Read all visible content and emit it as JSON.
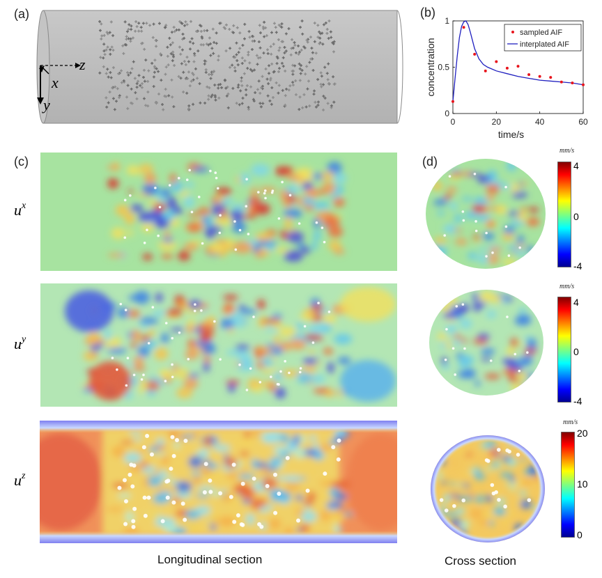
{
  "panels": {
    "a": "(a)",
    "b": "(b)",
    "c": "(c)",
    "d": "(d)"
  },
  "vessel_axes": {
    "z": "z",
    "x": "x",
    "y": "y"
  },
  "components": [
    {
      "base": "u",
      "sup": "x"
    },
    {
      "base": "u",
      "sup": "y"
    },
    {
      "base": "u",
      "sup": "z"
    }
  ],
  "colorbars": [
    {
      "unit": "mm/s",
      "ticks": [
        "4",
        "0",
        "-4"
      ]
    },
    {
      "unit": "mm/s",
      "ticks": [
        "4",
        "0",
        "-4"
      ]
    },
    {
      "unit": "mm/s",
      "ticks": [
        "20",
        "10",
        "0"
      ]
    }
  ],
  "captions": {
    "longitudinal": "Longitudinal section",
    "cross": "Cross section"
  },
  "colors": {
    "sampled": "#e8141c",
    "interpolated": "#1f1fbf",
    "field_bg_x": "#a7e3a0",
    "field_bg_y": "#b3e6b4",
    "field_bg_z": "#f0915a"
  },
  "chart_data": {
    "type": "line",
    "xlabel": "time/s",
    "ylabel": "concentration",
    "xlim": [
      0,
      60
    ],
    "ylim": [
      0,
      1
    ],
    "xticks": [
      0,
      20,
      40,
      60
    ],
    "yticks": [
      0,
      0.5,
      1
    ],
    "legend_position": "top-right",
    "series": [
      {
        "name": "sampled AIF",
        "style": "markers",
        "x": [
          0,
          5,
          10,
          15,
          20,
          25,
          30,
          35,
          40,
          45,
          50,
          55,
          60
        ],
        "y": [
          0.13,
          0.93,
          0.64,
          0.46,
          0.56,
          0.49,
          0.51,
          0.42,
          0.4,
          0.39,
          0.34,
          0.33,
          0.31
        ]
      },
      {
        "name": "interplated AIF",
        "style": "line",
        "x": [
          0,
          1,
          2,
          3,
          4,
          5,
          6,
          7,
          8,
          9,
          10,
          12,
          14,
          16,
          18,
          20,
          25,
          30,
          35,
          40,
          45,
          50,
          55,
          60
        ],
        "y": [
          0.13,
          0.38,
          0.62,
          0.82,
          0.94,
          0.99,
          1.0,
          0.96,
          0.88,
          0.79,
          0.7,
          0.59,
          0.53,
          0.5,
          0.48,
          0.46,
          0.43,
          0.4,
          0.38,
          0.36,
          0.35,
          0.34,
          0.33,
          0.31
        ]
      }
    ]
  }
}
